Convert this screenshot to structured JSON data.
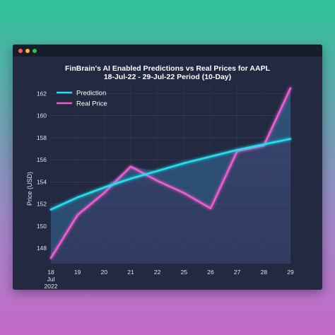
{
  "window": {
    "controls": [
      "close",
      "minimize",
      "maximize"
    ]
  },
  "chart_data": {
    "type": "line",
    "title": "FinBrain's AI Enabled Predictions vs Real Prices for AAPL",
    "subtitle": "18-Jul-22 - 29-Jul-22 Period (10-Day)",
    "xlabel": "",
    "ylabel": "Price (USD)",
    "x": [
      "18",
      "19",
      "20",
      "21",
      "22",
      "25",
      "26",
      "27",
      "28",
      "29"
    ],
    "x_sublabels": [
      "Jul",
      "2022"
    ],
    "ylim": [
      146.6,
      162.8
    ],
    "yticks": [
      148,
      150,
      152,
      154,
      156,
      158,
      160,
      162
    ],
    "grid": true,
    "legend": "top-left",
    "series": [
      {
        "name": "Prediction",
        "color": "#22e0f0",
        "values": [
          151.5,
          152.6,
          153.5,
          154.3,
          155.0,
          155.7,
          156.3,
          156.9,
          157.4,
          157.9
        ]
      },
      {
        "name": "Real Price",
        "color": "#f05bd0",
        "values": [
          147.1,
          151.0,
          153.0,
          155.4,
          154.1,
          153.0,
          151.6,
          156.8,
          157.3,
          162.5
        ]
      }
    ]
  }
}
